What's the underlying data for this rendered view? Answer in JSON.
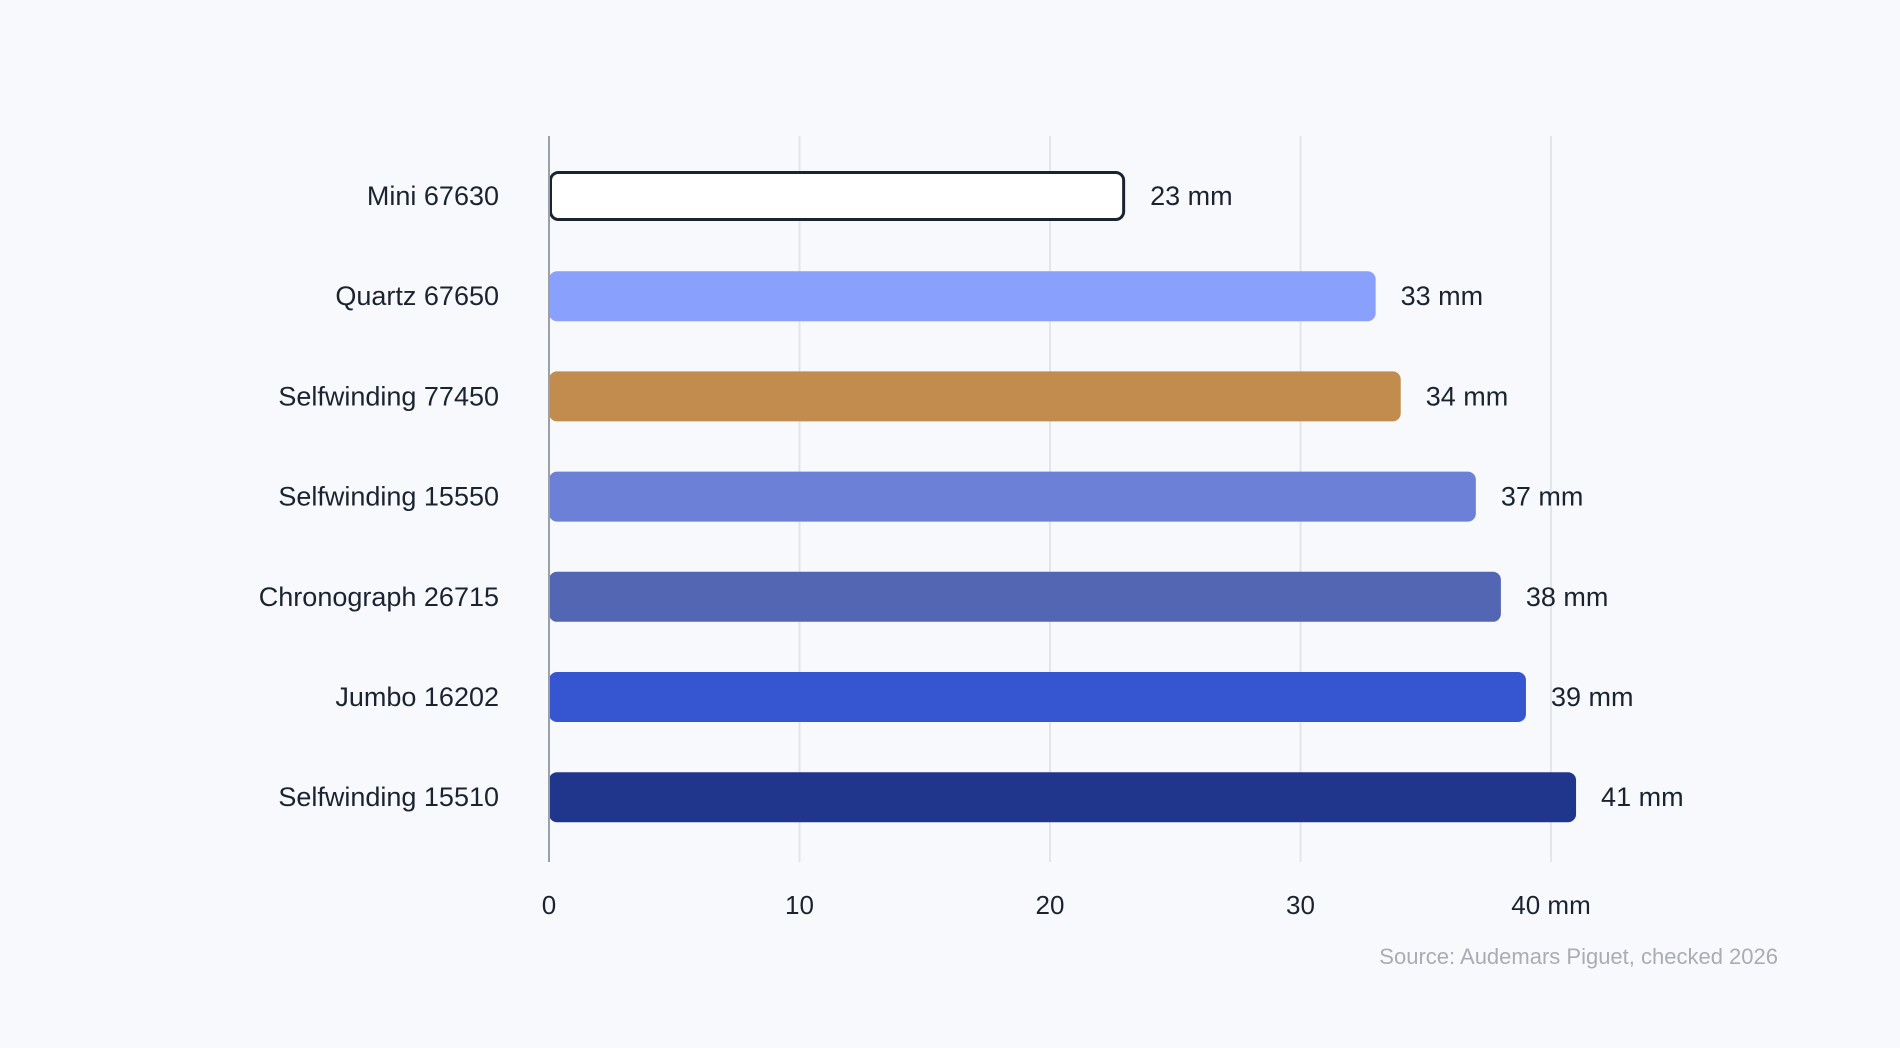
{
  "chart_data": {
    "type": "bar",
    "orientation": "horizontal",
    "categories": [
      "Mini 67630",
      "Quartz 67650",
      "Selfwinding 77450",
      "Selfwinding 15550",
      "Chronograph 26715",
      "Jumbo 16202",
      "Selfwinding 15510"
    ],
    "values": [
      23,
      33,
      34,
      37,
      38,
      39,
      41
    ],
    "value_labels": [
      "23 mm",
      "33 mm",
      "34 mm",
      "37 mm",
      "38 mm",
      "39 mm",
      "41 mm"
    ],
    "colors": [
      "#ffffff",
      "#8aa0fd",
      "#c18c4d",
      "#6d80d8",
      "#5366b3",
      "#3555d1",
      "#20368c"
    ],
    "highlight": {
      "index": 0,
      "fill": "#ffffff",
      "stroke": "#1c2330"
    },
    "xlim": [
      0,
      40
    ],
    "ticks": [
      0,
      10,
      20,
      30,
      40
    ],
    "tick_labels": [
      "0",
      "10",
      "20",
      "30",
      "40 mm"
    ],
    "grid": true,
    "title": "",
    "xlabel": "",
    "ylabel": ""
  },
  "source_note": "Source: Audemars Piguet, checked 2026"
}
